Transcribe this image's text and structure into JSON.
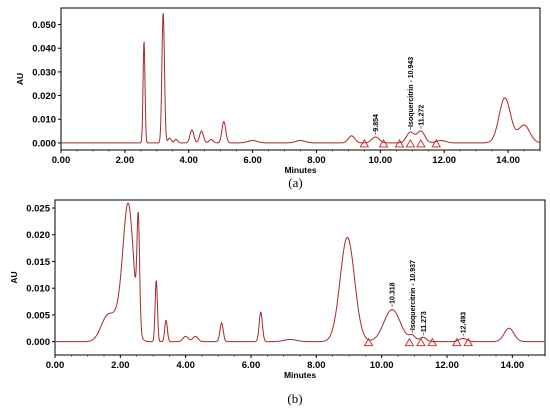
{
  "colors": {
    "trace": "#a52a2a",
    "marker": "#cc2020",
    "axis": "#000000"
  },
  "chart_data": [
    {
      "type": "line",
      "panel_label": "(a)",
      "xlabel": "Minutes",
      "ylabel": "AU",
      "xlim": [
        0,
        15
      ],
      "ylim": [
        -0.003,
        0.057
      ],
      "xticks": [
        "0.00",
        "2.00",
        "4.00",
        "6.00",
        "8.00",
        "10.00",
        "12.00",
        "14.00"
      ],
      "xtick_values": [
        0,
        2,
        4,
        6,
        8,
        10,
        12,
        14
      ],
      "yticks": [
        "0.000",
        "0.010",
        "0.020",
        "0.030",
        "0.040",
        "0.050"
      ],
      "ytick_values": [
        0.0,
        0.01,
        0.02,
        0.03,
        0.04,
        0.05
      ],
      "baseline": 0.0,
      "peaks": [
        {
          "t": 2.6,
          "h": 0.043,
          "w": 0.03
        },
        {
          "t": 3.2,
          "h": 0.055,
          "w": 0.04
        },
        {
          "t": 3.4,
          "h": 0.002,
          "w": 0.05
        },
        {
          "t": 3.6,
          "h": 0.0015,
          "w": 0.05
        },
        {
          "t": 4.1,
          "h": 0.0055,
          "w": 0.06
        },
        {
          "t": 4.4,
          "h": 0.005,
          "w": 0.06
        },
        {
          "t": 4.7,
          "h": 0.0015,
          "w": 0.06
        },
        {
          "t": 5.1,
          "h": 0.009,
          "w": 0.06
        },
        {
          "t": 6.0,
          "h": 0.001,
          "w": 0.15
        },
        {
          "t": 7.5,
          "h": 0.001,
          "w": 0.15
        },
        {
          "t": 9.1,
          "h": 0.003,
          "w": 0.1
        },
        {
          "t": 9.85,
          "h": 0.0025,
          "w": 0.12
        },
        {
          "t": 10.94,
          "h": 0.0045,
          "w": 0.12
        },
        {
          "t": 11.27,
          "h": 0.005,
          "w": 0.12
        },
        {
          "t": 11.9,
          "h": 0.001,
          "w": 0.15
        },
        {
          "t": 13.9,
          "h": 0.019,
          "w": 0.18
        },
        {
          "t": 14.5,
          "h": 0.0075,
          "w": 0.18
        }
      ],
      "markers": [
        9.5,
        10.1,
        10.6,
        10.94,
        11.27,
        11.75
      ],
      "annotations": [
        {
          "label": "9.854",
          "t": 9.854,
          "y": 0.0035
        },
        {
          "label": "Isoquercitrin - 10.943",
          "t": 10.943,
          "y": 0.0055
        },
        {
          "label": "11.272",
          "t": 11.272,
          "y": 0.006
        }
      ]
    },
    {
      "type": "line",
      "panel_label": "(b)",
      "xlabel": "Minutes",
      "ylabel": "AU",
      "xlim": [
        0,
        15
      ],
      "ylim": [
        -0.0025,
        0.0265
      ],
      "xticks": [
        "0.00",
        "2.00",
        "4.00",
        "6.00",
        "8.00",
        "10.00",
        "12.00",
        "14.00"
      ],
      "xtick_values": [
        0,
        2,
        4,
        6,
        8,
        10,
        12,
        14
      ],
      "yticks": [
        "0.000",
        "0.005",
        "0.010",
        "0.015",
        "0.020",
        "0.025"
      ],
      "ytick_values": [
        0.0,
        0.005,
        0.01,
        0.015,
        0.02,
        0.025
      ],
      "baseline": 0.0,
      "peaks": [
        {
          "t": 1.6,
          "h": 0.0045,
          "w": 0.2
        },
        {
          "t": 2.25,
          "h": 0.024,
          "w": 0.16
        },
        {
          "t": 2.55,
          "h": 0.02,
          "w": 0.04
        },
        {
          "t": 2.0,
          "h": 0.004,
          "w": 0.2
        },
        {
          "t": 3.1,
          "h": 0.0115,
          "w": 0.035
        },
        {
          "t": 3.4,
          "h": 0.004,
          "w": 0.04
        },
        {
          "t": 4.0,
          "h": 0.001,
          "w": 0.08
        },
        {
          "t": 4.3,
          "h": 0.001,
          "w": 0.08
        },
        {
          "t": 5.1,
          "h": 0.0035,
          "w": 0.05
        },
        {
          "t": 6.3,
          "h": 0.0055,
          "w": 0.05
        },
        {
          "t": 7.2,
          "h": 0.0004,
          "w": 0.2
        },
        {
          "t": 8.95,
          "h": 0.0195,
          "w": 0.22
        },
        {
          "t": 10.32,
          "h": 0.006,
          "w": 0.25
        },
        {
          "t": 10.94,
          "h": 0.001,
          "w": 0.1
        },
        {
          "t": 11.27,
          "h": 0.0008,
          "w": 0.1
        },
        {
          "t": 12.49,
          "h": 0.0006,
          "w": 0.12
        },
        {
          "t": 13.9,
          "h": 0.0025,
          "w": 0.15
        }
      ],
      "markers": [
        9.6,
        10.85,
        11.2,
        11.55,
        12.3,
        12.65
      ],
      "annotations": [
        {
          "label": "10.318",
          "t": 10.318,
          "y": 0.0065
        },
        {
          "label": "Isoquercitrin - 10.937",
          "t": 10.937,
          "y": 0.0016
        },
        {
          "label": "11.273",
          "t": 11.273,
          "y": 0.0012
        },
        {
          "label": "12.493",
          "t": 12.493,
          "y": 0.001
        }
      ]
    }
  ]
}
